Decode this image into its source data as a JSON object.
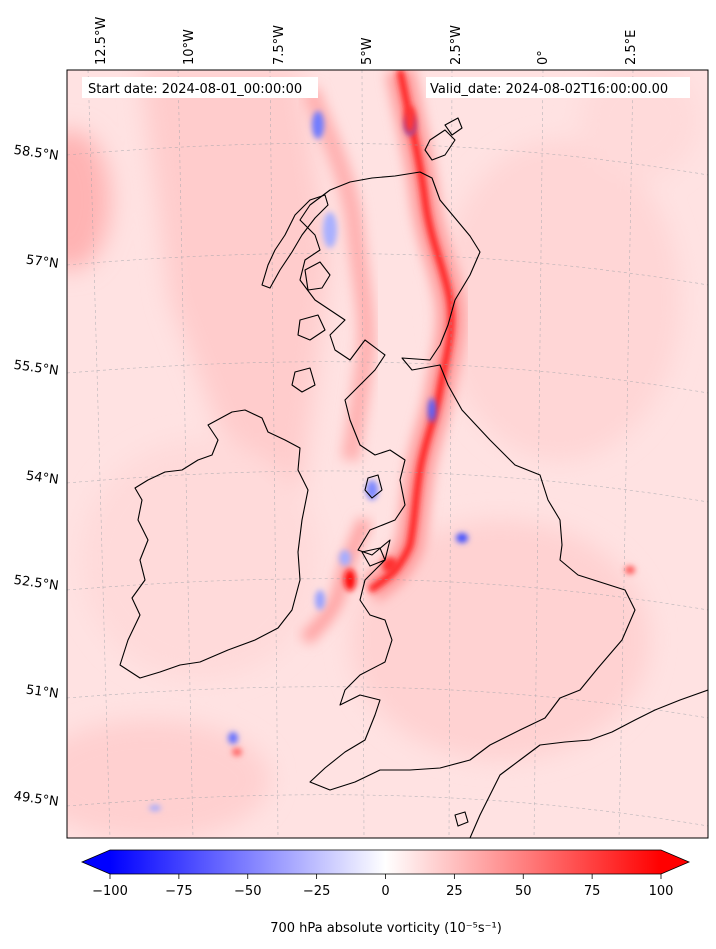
{
  "header": {
    "start_date": "Start date: 2024-08-01_00:00:00",
    "valid_date": "Valid_date: 2024-08-02T16:00:00.00"
  },
  "map": {
    "projection": "lambert-conformal",
    "extent": {
      "lon_min": -13.5,
      "lon_max": 4.0,
      "lat_min": 49.0,
      "lat_max": 60.0
    },
    "gridlines": true,
    "lon_labels": [
      "12.5°W",
      "10°W",
      "7.5°W",
      "5°W",
      "2.5°W",
      "0°",
      "2.5°E"
    ],
    "lat_labels": [
      "58.5°N",
      "57°N",
      "55.5°N",
      "54°N",
      "52.5°N",
      "51°N",
      "49.5°N"
    ],
    "field": "700 hPa absolute vorticity",
    "coastline_color": "#000000"
  },
  "colorbar": {
    "label": "700 hPa absolute vorticity (10⁻⁵s⁻¹)",
    "min": -100,
    "max": 100,
    "ticks": [
      "−100",
      "−75",
      "−50",
      "−25",
      "0",
      "25",
      "50",
      "75",
      "100"
    ],
    "cmap": "bwr",
    "low_color": "#0000ff",
    "mid_color": "#ffffff",
    "high_color": "#ff0000",
    "extend": "both"
  }
}
